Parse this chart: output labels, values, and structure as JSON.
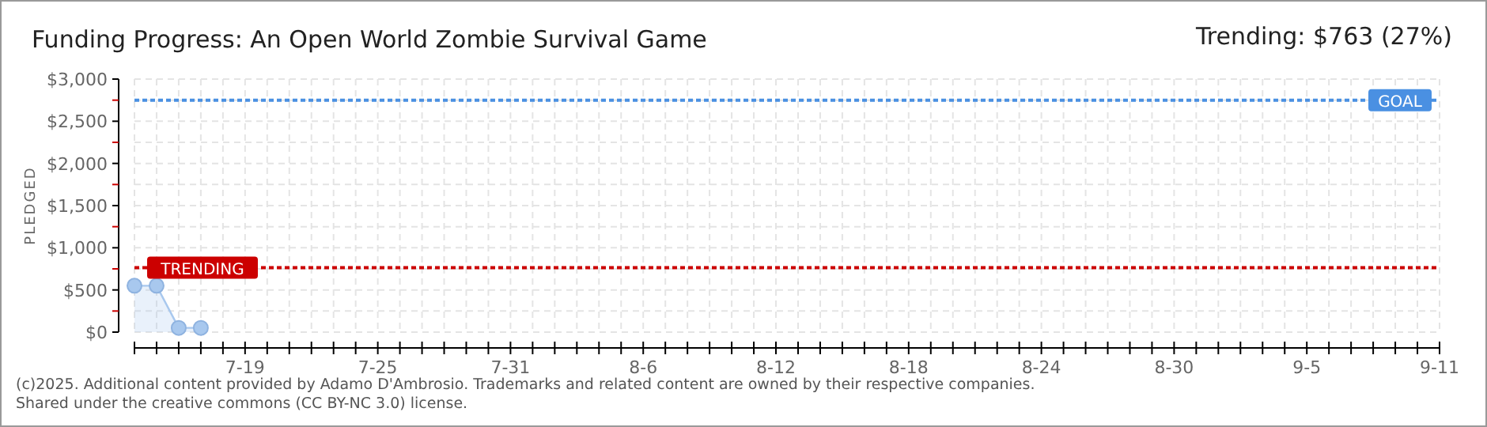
{
  "chart_data": {
    "type": "area",
    "title": "Funding Progress: An Open World Zombie Survival Game",
    "subtitle": "Trending: $763 (27%)",
    "ylabel": "PLEDGED",
    "x": [
      "--07-14",
      "--07-15",
      "--07-16",
      "--07-17"
    ],
    "series": [
      {
        "color": "#a8c8ee",
        "values": [
          550,
          550,
          50,
          50
        ]
      }
    ],
    "marker": "circle",
    "grid": true,
    "xlim": [
      "--07-14",
      "--09-11"
    ],
    "xticks": [
      {
        "value": "--07-14",
        "label": null
      },
      {
        "value": "--07-15",
        "label": null
      },
      {
        "value": "--07-16",
        "label": null
      },
      {
        "value": "--07-17",
        "label": null
      },
      {
        "value": "--07-18",
        "label": null
      },
      {
        "value": "--07-19",
        "label": "7-19"
      },
      {
        "value": "--07-20",
        "label": null
      },
      {
        "value": "--07-21",
        "label": null
      },
      {
        "value": "--07-22",
        "label": null
      },
      {
        "value": "--07-23",
        "label": null
      },
      {
        "value": "--07-24",
        "label": null
      },
      {
        "value": "--07-25",
        "label": "7-25"
      },
      {
        "value": "--07-26",
        "label": null
      },
      {
        "value": "--07-27",
        "label": null
      },
      {
        "value": "--07-28",
        "label": null
      },
      {
        "value": "--07-29",
        "label": null
      },
      {
        "value": "--07-30",
        "label": null
      },
      {
        "value": "--07-31",
        "label": "7-31"
      },
      {
        "value": "--08-01",
        "label": null
      },
      {
        "value": "--08-02",
        "label": null
      },
      {
        "value": "--08-03",
        "label": null
      },
      {
        "value": "--08-04",
        "label": null
      },
      {
        "value": "--08-05",
        "label": null
      },
      {
        "value": "--08-06",
        "label": "8-6"
      },
      {
        "value": "--08-07",
        "label": null
      },
      {
        "value": "--08-08",
        "label": null
      },
      {
        "value": "--08-09",
        "label": null
      },
      {
        "value": "--08-10",
        "label": null
      },
      {
        "value": "--08-11",
        "label": null
      },
      {
        "value": "--08-12",
        "label": "8-12"
      },
      {
        "value": "--08-13",
        "label": null
      },
      {
        "value": "--08-14",
        "label": null
      },
      {
        "value": "--08-15",
        "label": null
      },
      {
        "value": "--08-16",
        "label": null
      },
      {
        "value": "--08-17",
        "label": null
      },
      {
        "value": "--08-18",
        "label": "8-18"
      },
      {
        "value": "--08-19",
        "label": null
      },
      {
        "value": "--08-20",
        "label": null
      },
      {
        "value": "--08-21",
        "label": null
      },
      {
        "value": "--08-22",
        "label": null
      },
      {
        "value": "--08-23",
        "label": null
      },
      {
        "value": "--08-24",
        "label": "8-24"
      },
      {
        "value": "--08-25",
        "label": null
      },
      {
        "value": "--08-26",
        "label": null
      },
      {
        "value": "--08-27",
        "label": null
      },
      {
        "value": "--08-28",
        "label": null
      },
      {
        "value": "--08-29",
        "label": null
      },
      {
        "value": "--08-30",
        "label": "8-30"
      },
      {
        "value": "--08-31",
        "label": null
      },
      {
        "value": "--09-01",
        "label": null
      },
      {
        "value": "--09-02",
        "label": null
      },
      {
        "value": "--09-03",
        "label": null
      },
      {
        "value": "--09-04",
        "label": null
      },
      {
        "value": "--09-05",
        "label": "9-5"
      },
      {
        "value": "--09-06",
        "label": null
      },
      {
        "value": "--09-07",
        "label": null
      },
      {
        "value": "--09-08",
        "label": null
      },
      {
        "value": "--09-09",
        "label": null
      },
      {
        "value": "--09-10",
        "label": null
      },
      {
        "value": "--09-11",
        "label": "9-11"
      }
    ],
    "ylim": [
      0,
      3000
    ],
    "yticks": [
      {
        "value": 0,
        "label": "$0"
      },
      {
        "value": 250,
        "label": null
      },
      {
        "value": 500,
        "label": "$500"
      },
      {
        "value": 750,
        "label": null
      },
      {
        "value": 1000,
        "label": "$1,000"
      },
      {
        "value": 1250,
        "label": null
      },
      {
        "value": 1500,
        "label": "$1,500"
      },
      {
        "value": 1750,
        "label": null
      },
      {
        "value": 2000,
        "label": "$2,000"
      },
      {
        "value": 2250,
        "label": null
      },
      {
        "value": 2500,
        "label": "$2,500"
      },
      {
        "value": 2750,
        "label": null
      },
      {
        "value": 3000,
        "label": "$3,000"
      }
    ],
    "ref_lines": [
      {
        "axis": "y",
        "value": 2750,
        "label": "GOAL",
        "color": "#4a90e2",
        "line_style": "dotted"
      },
      {
        "axis": "y",
        "value": 763,
        "label": "TRENDING",
        "color": "#cc0000",
        "line_style": "dotted"
      }
    ],
    "annotations": [
      "(c)2025. Additional content provided by Adamo D'Ambrosio. Trademarks and related content are owned by their respective companies.",
      "Shared under the creative commons (CC BY-NC 3.0) license."
    ]
  }
}
